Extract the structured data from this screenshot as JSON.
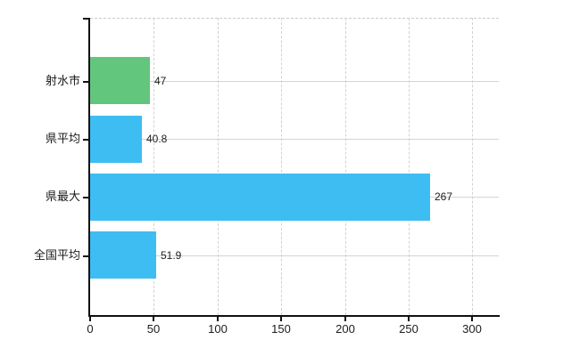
{
  "chart_data": {
    "type": "bar",
    "orientation": "horizontal",
    "title": "",
    "xlabel": "",
    "ylabel": "",
    "categories": [
      "射水市",
      "県平均",
      "県最大",
      "全国平均"
    ],
    "values": [
      47,
      40.8,
      267,
      51.9
    ],
    "value_labels": [
      "47",
      "40.8",
      "267",
      "51.9"
    ],
    "bar_colors": [
      "#63c67d",
      "#3ebdf2",
      "#3ebdf2",
      "#3ebdf2"
    ],
    "xlim": [
      0,
      320
    ],
    "x_ticks": [
      0,
      50,
      100,
      150,
      200,
      250,
      300
    ],
    "x_tick_labels": [
      "0",
      "50",
      "100",
      "150",
      "200",
      "250",
      "300"
    ],
    "grid": true,
    "legend": false
  },
  "colors": {
    "bar_green": "#63c67d",
    "bar_blue": "#3ebdf2",
    "axis": "#111111",
    "grid_horizontal": "#cfd7cf",
    "grid_vertical": "#d4d0d4",
    "plot_top_border": "#c9c9c9",
    "background": "#ffffff",
    "text": "#1b1b1b"
  }
}
